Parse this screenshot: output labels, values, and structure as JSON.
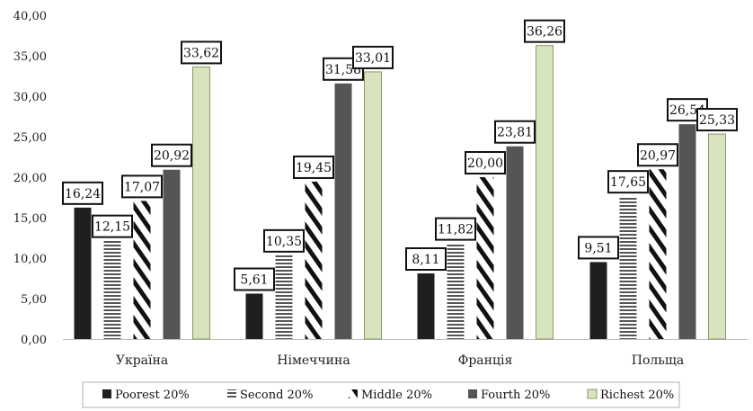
{
  "chart_data": {
    "type": "bar",
    "categories": [
      "Україна",
      "Німеччина",
      "Франція",
      "Польща"
    ],
    "series": [
      {
        "name": "Poorest 20%",
        "values": [
          16.24,
          5.61,
          8.11,
          9.51
        ],
        "pattern": "solid",
        "color": "#1f1f1f"
      },
      {
        "name": "Second 20%",
        "values": [
          12.15,
          10.35,
          11.82,
          17.65
        ],
        "pattern": "horizontal-lines",
        "color": "#555555"
      },
      {
        "name": "Middle 20%",
        "values": [
          17.07,
          19.45,
          20.0,
          20.97
        ],
        "pattern": "diagonal-stripes",
        "color": "#111111"
      },
      {
        "name": "Fourth 20%",
        "values": [
          20.92,
          31.58,
          23.81,
          26.54
        ],
        "pattern": "solid",
        "color": "#555555"
      },
      {
        "name": "Richest 20%",
        "values": [
          33.62,
          33.01,
          36.26,
          25.33
        ],
        "pattern": "solid",
        "color": "#d7e4bd"
      }
    ],
    "data_labels": [
      [
        "16,24",
        "5,61",
        "8,11",
        "9,51"
      ],
      [
        "12,15",
        "10,35",
        "11,82",
        "17,65"
      ],
      [
        "17,07",
        "19,45",
        "20,00",
        "20,97"
      ],
      [
        "20,92",
        "31,58",
        "23,81",
        "26,54"
      ],
      [
        "33,62",
        "33,01",
        "36,26",
        "25,33"
      ]
    ],
    "y_ticks": [
      "0,00",
      "5,00",
      "10,00",
      "15,00",
      "20,00",
      "25,00",
      "30,00",
      "35,00",
      "40,00"
    ],
    "ylim": [
      0,
      40
    ],
    "title": "",
    "xlabel": "",
    "ylabel": "",
    "grid": false,
    "legend_position": "bottom"
  }
}
